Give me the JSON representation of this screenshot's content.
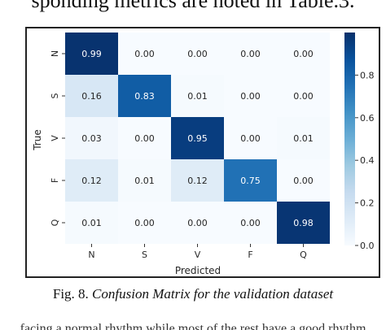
{
  "page": {
    "top_text": "sponding metrics are noted in Table.3.",
    "caption_prefix": "Fig. 8. ",
    "caption_italic": "Confusion Matrix for the validation dataset",
    "bottom_text": "facing a normal rhythm while most of the rest have a good rhythm"
  },
  "chart_data": {
    "type": "heatmap",
    "title": "",
    "xlabel": "Predicted",
    "ylabel": "True",
    "x_categories": [
      "N",
      "S",
      "V",
      "F",
      "Q"
    ],
    "y_categories": [
      "N",
      "S",
      "V",
      "F",
      "Q"
    ],
    "values": [
      [
        0.99,
        0.0,
        0.0,
        0.0,
        0.0
      ],
      [
        0.16,
        0.83,
        0.01,
        0.0,
        0.0
      ],
      [
        0.03,
        0.0,
        0.95,
        0.0,
        0.01
      ],
      [
        0.12,
        0.01,
        0.12,
        0.75,
        0.0
      ],
      [
        0.01,
        0.0,
        0.0,
        0.0,
        0.98
      ]
    ],
    "value_labels": [
      [
        "0.99",
        "0.00",
        "0.00",
        "0.00",
        "0.00"
      ],
      [
        "0.16",
        "0.83",
        "0.01",
        "0.00",
        "0.00"
      ],
      [
        "0.03",
        "0.00",
        "0.95",
        "0.00",
        "0.01"
      ],
      [
        "0.12",
        "0.01",
        "0.12",
        "0.75",
        "0.00"
      ],
      [
        "0.01",
        "0.00",
        "0.00",
        "0.00",
        "0.98"
      ]
    ],
    "colorbar": {
      "min": 0.0,
      "max": 1.0,
      "ticks": [
        0.0,
        0.2,
        0.4,
        0.6,
        0.8
      ],
      "tick_labels": [
        "0.0",
        "0.2",
        "0.4",
        "0.6",
        "0.8"
      ]
    },
    "colormap": "Blues",
    "colors": {
      "low": "#f7fbff",
      "high": "#08306b",
      "text_dark": "#262626",
      "text_light": "#ffffff"
    }
  }
}
